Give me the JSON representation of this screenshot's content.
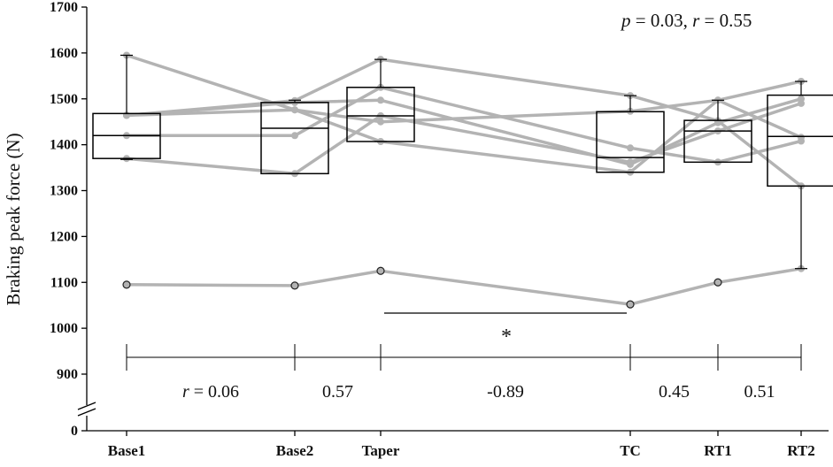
{
  "chart_data": {
    "type": "box",
    "ylabel": "Braking peak force (N)",
    "categories": [
      "Base1",
      "Base2",
      "Taper",
      "TC",
      "RT1",
      "RT2"
    ],
    "yticks": [
      0,
      900,
      1000,
      1100,
      1200,
      1300,
      1400,
      1500,
      1600,
      1700
    ],
    "ylim": [
      900,
      1700
    ],
    "axis_break": true,
    "boxes": [
      {
        "category": "Base1",
        "min": 1368,
        "q1": 1370,
        "median": 1420,
        "q3": 1468,
        "max": 1595
      },
      {
        "category": "Base2",
        "min": 1337,
        "q1": 1337,
        "median": 1436,
        "q3": 1492,
        "max": 1497
      },
      {
        "category": "Taper",
        "min": 1407,
        "q1": 1407,
        "median": 1463,
        "q3": 1525,
        "max": 1586
      },
      {
        "category": "TC",
        "min": 1340,
        "q1": 1340,
        "median": 1372,
        "q3": 1472,
        "max": 1507
      },
      {
        "category": "RT1",
        "min": 1362,
        "q1": 1362,
        "median": 1430,
        "q3": 1453,
        "max": 1497
      },
      {
        "category": "RT2",
        "min": 1130,
        "q1": 1310,
        "median": 1418,
        "q3": 1508,
        "max": 1538
      }
    ],
    "series": [
      {
        "values": [
          1595,
          1476,
          1450,
          1473,
          1497,
          1538
        ]
      },
      {
        "values": [
          1464,
          1496,
          1586,
          1507,
          1452,
          1310
        ]
      },
      {
        "values": [
          1420,
          1420,
          1525,
          1393,
          1362,
          1408
        ]
      },
      {
        "values": [
          1370,
          1337,
          1463,
          1362,
          1430,
          1490
        ]
      },
      {
        "values": [
          1464,
          1476,
          1407,
          1340,
          1497,
          1416
        ]
      },
      {
        "values": [
          1464,
          1492,
          1497,
          1357,
          1448,
          1500
        ]
      },
      {
        "values": [
          1095,
          1093,
          1125,
          1052,
          1100,
          1130
        ]
      }
    ],
    "outliers": [
      {
        "category": "Base1",
        "value": 1095
      },
      {
        "category": "Base2",
        "value": 1093
      },
      {
        "category": "Taper",
        "value": 1125
      },
      {
        "category": "TC",
        "value": 1052
      },
      {
        "category": "RT1",
        "value": 1100
      }
    ],
    "annotations": {
      "stats": "p = 0.03, r = 0.55",
      "stats_p": "p",
      "stats_p_val": " = 0.03, ",
      "stats_r": "r",
      "stats_r_val": " = 0.55",
      "significance": "*",
      "significance_from": "Taper",
      "significance_to": "TC",
      "effect_sizes": [
        {
          "from": "Base1",
          "to": "Base2",
          "label_italic": "r",
          "label": " = 0.06"
        },
        {
          "from": "Base2",
          "to": "Taper",
          "label_italic": "",
          "label": "0.57"
        },
        {
          "from": "Taper",
          "to": "TC",
          "label_italic": "",
          "label": "-0.89"
        },
        {
          "from": "TC",
          "to": "RT1",
          "label_italic": "",
          "label": "0.45"
        },
        {
          "from": "RT1",
          "to": "RT2",
          "label_italic": "",
          "label": "0.51"
        }
      ]
    },
    "colors": {
      "lines": "#b3b3b3",
      "box": "#000000",
      "axis": "#000000"
    },
    "grid": false,
    "legend": "none"
  }
}
